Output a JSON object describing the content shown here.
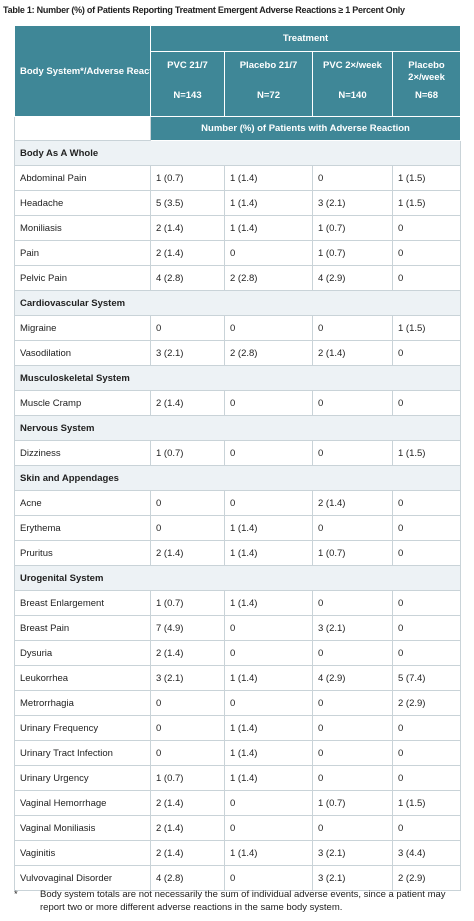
{
  "header": {
    "title": "Table 1: Number (%) of Patients Reporting Treatment Emergent Adverse Reactions ≥ 1 Percent Only"
  },
  "table": {
    "first_column_header": "Body System*/Adverse Reaction",
    "treatment_header": "Treatment",
    "columns": [
      {
        "label": "PVC 21/7",
        "n": "N=143"
      },
      {
        "label": "Placebo 21/7",
        "n": "N=72"
      },
      {
        "label": "PVC 2×/week",
        "n": "N=140"
      },
      {
        "label": "Placebo 2×/week",
        "n": "N=68"
      }
    ],
    "subheader": "Number (%) of Patients with Adverse Reaction",
    "sections": [
      {
        "name": "Body As A Whole",
        "rows": [
          {
            "label": "Abdominal Pain",
            "values": [
              "1 (0.7)",
              "1 (1.4)",
              "0",
              "1 (1.5)"
            ]
          },
          {
            "label": "Headache",
            "values": [
              "5 (3.5)",
              "1 (1.4)",
              "3 (2.1)",
              "1 (1.5)"
            ]
          },
          {
            "label": "Moniliasis",
            "values": [
              "2 (1.4)",
              "1 (1.4)",
              "1 (0.7)",
              "0"
            ]
          },
          {
            "label": "Pain",
            "values": [
              "2 (1.4)",
              "0",
              "1 (0.7)",
              "0"
            ]
          },
          {
            "label": "Pelvic Pain",
            "values": [
              "4 (2.8)",
              "2 (2.8)",
              "4 (2.9)",
              "0"
            ]
          }
        ]
      },
      {
        "name": "Cardiovascular System",
        "rows": [
          {
            "label": "Migraine",
            "values": [
              "0",
              "0",
              "0",
              "1 (1.5)"
            ]
          },
          {
            "label": "Vasodilation",
            "values": [
              "3 (2.1)",
              "2 (2.8)",
              "2 (1.4)",
              "0"
            ]
          }
        ]
      },
      {
        "name": "Musculoskeletal System",
        "rows": [
          {
            "label": "Muscle Cramp",
            "values": [
              "2 (1.4)",
              "0",
              "0",
              "0"
            ]
          }
        ]
      },
      {
        "name": "Nervous System",
        "rows": [
          {
            "label": "Dizziness",
            "values": [
              "1 (0.7)",
              "0",
              "0",
              "1 (1.5)"
            ]
          }
        ]
      },
      {
        "name": "Skin and Appendages",
        "rows": [
          {
            "label": "Acne",
            "values": [
              "0",
              "0",
              "2 (1.4)",
              "0"
            ]
          },
          {
            "label": "Erythema",
            "values": [
              "0",
              "1 (1.4)",
              "0",
              "0"
            ]
          },
          {
            "label": "Pruritus",
            "values": [
              "2 (1.4)",
              "1 (1.4)",
              "1 (0.7)",
              "0"
            ]
          }
        ]
      },
      {
        "name": "Urogenital System",
        "rows": [
          {
            "label": "Breast Enlargement",
            "values": [
              "1 (0.7)",
              "1 (1.4)",
              "0",
              "0"
            ]
          },
          {
            "label": "Breast Pain",
            "values": [
              "7 (4.9)",
              "0",
              "3 (2.1)",
              "0"
            ]
          },
          {
            "label": "Dysuria",
            "values": [
              "2 (1.4)",
              "0",
              "0",
              "0"
            ]
          },
          {
            "label": "Leukorrhea",
            "values": [
              "3 (2.1)",
              "1 (1.4)",
              "4 (2.9)",
              "5 (7.4)"
            ]
          },
          {
            "label": "Metrorrhagia",
            "values": [
              "0",
              "0",
              "0",
              "2 (2.9)"
            ]
          },
          {
            "label": "Urinary Frequency",
            "values": [
              "0",
              "1 (1.4)",
              "0",
              "0"
            ]
          },
          {
            "label": "Urinary Tract Infection",
            "values": [
              "0",
              "1 (1.4)",
              "0",
              "0"
            ]
          },
          {
            "label": "Urinary Urgency",
            "values": [
              "1 (0.7)",
              "1 (1.4)",
              "0",
              "0"
            ]
          },
          {
            "label": "Vaginal Hemorrhage",
            "values": [
              "2 (1.4)",
              "0",
              "1 (0.7)",
              "1 (1.5)"
            ]
          },
          {
            "label": "Vaginal Moniliasis",
            "values": [
              "2 (1.4)",
              "0",
              "0",
              "0"
            ]
          },
          {
            "label": "Vaginitis",
            "values": [
              "2 (1.4)",
              "1 (1.4)",
              "3 (2.1)",
              "3 (4.4)"
            ]
          },
          {
            "label": "Vulvovaginal Disorder",
            "values": [
              "4 (2.8)",
              "0",
              "3 (2.1)",
              "2 (2.9)"
            ]
          }
        ]
      }
    ]
  },
  "footnote": {
    "marker": "*",
    "text": "Body system totals are not necessarily the sum of individual adverse events, since a patient may report two or more different adverse reactions in the same body system."
  }
}
